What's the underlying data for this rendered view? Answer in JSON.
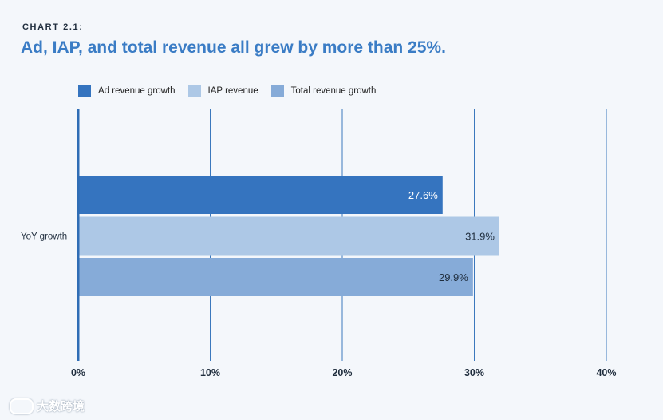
{
  "header": {
    "eyebrow": "CHART 2.1:",
    "title": "Ad, IAP, and total revenue all grew by more than 25%."
  },
  "legend": {
    "items": [
      {
        "label": "Ad revenue growth",
        "color": "#3574bf"
      },
      {
        "label": "IAP revenue",
        "color": "#adc8e6"
      },
      {
        "label": "Total revenue growth",
        "color": "#86abd8"
      }
    ]
  },
  "watermark": {
    "text": "大数跨境"
  },
  "chart_data": {
    "type": "bar",
    "orientation": "horizontal",
    "categories": [
      "YoY growth"
    ],
    "series": [
      {
        "name": "Ad revenue growth",
        "values": [
          27.6
        ],
        "label": "27.6%",
        "color": "#3574bf",
        "label_color": "#ffffff"
      },
      {
        "name": "IAP revenue",
        "values": [
          31.9
        ],
        "label": "31.9%",
        "color": "#adc8e6",
        "label_color": "#1f2d3d"
      },
      {
        "name": "Total revenue growth",
        "values": [
          29.9
        ],
        "label": "29.9%",
        "color": "#86abd8",
        "label_color": "#1f2d3d"
      }
    ],
    "xlim": [
      0,
      40
    ],
    "xticks": [
      "0%",
      "10%",
      "20%",
      "30%",
      "40%"
    ],
    "grid": true,
    "legend_position": "top-left"
  }
}
